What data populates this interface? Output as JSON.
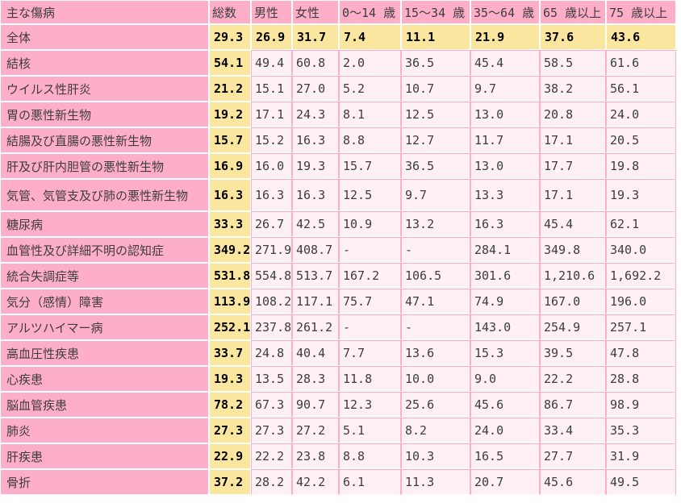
{
  "colors": {
    "header_pink": "#ffaec9",
    "label_pink": "#ffaec9",
    "total_yellow": "#fae69e",
    "data_cell_pink": "#fff0f5",
    "grid_pink": "#ffaec9",
    "separator_white": "#ffffff",
    "text": "#3d3d3d",
    "text_strong": "#000000"
  },
  "chart_data": {
    "type": "table",
    "columns": [
      "主な傷病",
      "総数",
      "男性",
      "女性",
      "0〜14 歳",
      "15〜34 歳",
      "35〜64 歳",
      "65 歳以上",
      "75 歳以上"
    ],
    "rows": [
      {
        "label": "全体",
        "highlight": true,
        "values": [
          "29.3",
          "26.9",
          "31.7",
          "7.4",
          "11.1",
          "21.9",
          "37.6",
          "43.6"
        ]
      },
      {
        "label": "結核",
        "highlight": false,
        "values": [
          "54.1",
          "49.4",
          "60.8",
          "2.0",
          "36.5",
          "45.4",
          "58.5",
          "61.6"
        ]
      },
      {
        "label": "ウイルス性肝炎",
        "highlight": false,
        "values": [
          "21.2",
          "15.1",
          "27.0",
          "5.2",
          "10.7",
          "9.7",
          "38.2",
          "56.1"
        ]
      },
      {
        "label": "胃の悪性新生物",
        "highlight": false,
        "values": [
          "19.2",
          "17.1",
          "24.3",
          "8.1",
          "12.5",
          "13.0",
          "20.8",
          "24.0"
        ]
      },
      {
        "label": "結腸及び直腸の悪性新生物",
        "highlight": false,
        "values": [
          "15.7",
          "15.2",
          "16.3",
          "8.8",
          "12.7",
          "11.7",
          "17.1",
          "20.5"
        ]
      },
      {
        "label": "肝及び肝内胆管の悪性新生物",
        "highlight": false,
        "values": [
          "16.9",
          "16.0",
          "19.3",
          "15.7",
          "36.5",
          "13.0",
          "17.7",
          "19.8"
        ]
      },
      {
        "label": "気管、気管支及び肺の悪性新生物",
        "highlight": false,
        "values": [
          "16.3",
          "16.3",
          "16.3",
          "12.5",
          "9.7",
          "13.3",
          "17.1",
          "19.3"
        ]
      },
      {
        "label": "糖尿病",
        "highlight": false,
        "values": [
          "33.3",
          "26.7",
          "42.5",
          "10.9",
          "13.2",
          "16.3",
          "45.4",
          "62.1"
        ]
      },
      {
        "label": "血管性及び詳細不明の認知症",
        "highlight": false,
        "values": [
          "349.2",
          "271.9",
          "408.7",
          "-",
          "-",
          "284.1",
          "349.8",
          "340.0"
        ]
      },
      {
        "label": "統合失調症等",
        "highlight": false,
        "values": [
          "531.8",
          "554.8",
          "513.7",
          "167.2",
          "106.5",
          "301.6",
          "1,210.6",
          "1,692.2"
        ]
      },
      {
        "label": "気分（感情）障害",
        "highlight": false,
        "values": [
          "113.9",
          "108.2",
          "117.1",
          "75.7",
          "47.1",
          "74.9",
          "167.0",
          "196.0"
        ]
      },
      {
        "label": "アルツハイマー病",
        "highlight": false,
        "values": [
          "252.1",
          "237.8",
          "261.2",
          "-",
          "-",
          "143.0",
          "254.9",
          "257.1"
        ]
      },
      {
        "label": "高血圧性疾患",
        "highlight": false,
        "values": [
          "33.7",
          "24.8",
          "40.4",
          "7.7",
          "13.6",
          "15.3",
          "39.5",
          "47.8"
        ]
      },
      {
        "label": "心疾患",
        "highlight": false,
        "values": [
          "19.3",
          "13.5",
          "28.3",
          "11.8",
          "10.0",
          "9.0",
          "22.2",
          "28.8"
        ]
      },
      {
        "label": "脳血管疾患",
        "highlight": false,
        "values": [
          "78.2",
          "67.3",
          "90.7",
          "12.3",
          "25.6",
          "45.6",
          "86.7",
          "98.9"
        ]
      },
      {
        "label": "肺炎",
        "highlight": false,
        "values": [
          "27.3",
          "27.3",
          "27.2",
          "5.1",
          "8.2",
          "24.0",
          "33.4",
          "35.3"
        ]
      },
      {
        "label": "肝疾患",
        "highlight": false,
        "values": [
          "22.9",
          "22.2",
          "23.8",
          "8.8",
          "10.3",
          "16.5",
          "27.7",
          "31.9"
        ]
      },
      {
        "label": "骨折",
        "highlight": false,
        "values": [
          "37.2",
          "28.2",
          "42.2",
          "6.1",
          "11.3",
          "20.7",
          "45.6",
          "49.5"
        ]
      }
    ]
  }
}
